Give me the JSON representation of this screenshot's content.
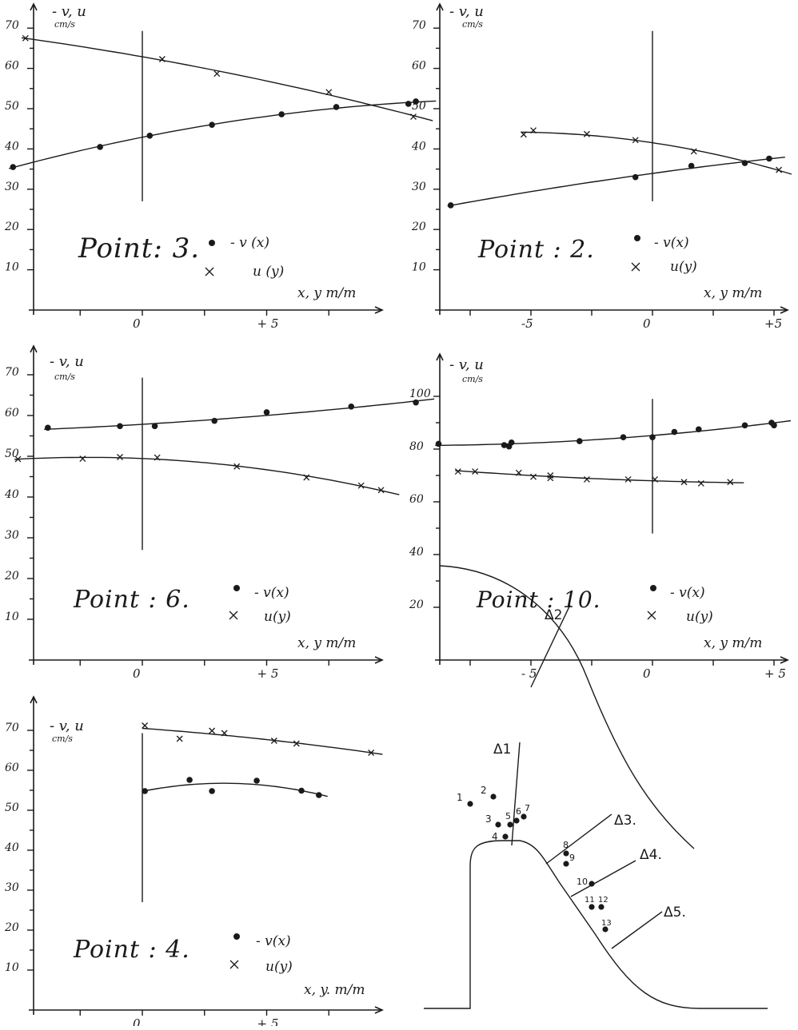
{
  "chart_data": [
    {
      "type": "scatter",
      "ylabel": "- v, u",
      "yunit": "cm/s",
      "xlabel": "x, y m/m",
      "yticks": [
        "70",
        "60",
        "50",
        "40",
        "30",
        "20",
        "10"
      ],
      "ytick_values": [
        70,
        60,
        50,
        40,
        30,
        20,
        10
      ],
      "xticks": [
        "0",
        "+ 5"
      ],
      "xtick_values": [
        0,
        5
      ],
      "xlim": [
        -5.4,
        12
      ],
      "ylim": [
        0,
        77
      ],
      "point_label": "Point: 3.",
      "legend": {
        "dot_label": "- v (x)",
        "cross_label": "u (y)"
      },
      "series": [
        {
          "name": "- v (x)",
          "marker": "dot",
          "x": [
            -5.2,
            -1.7,
            0.3,
            2.8,
            5.6,
            7.8,
            10.7,
            11.0
          ],
          "y": [
            35.5,
            40.5,
            43.3,
            46.0,
            48.6,
            50.4,
            51.2,
            51.8
          ]
        },
        {
          "name": "u (y)",
          "marker": "cross",
          "x": [
            -4.7,
            0.8,
            3.0,
            7.5,
            10.9
          ],
          "y": [
            67.5,
            62.3,
            58.7,
            54.1,
            48.0
          ]
        }
      ]
    },
    {
      "type": "scatter",
      "ylabel": "- v, u",
      "yunit": "cm/s",
      "xlabel": "x, y m/m",
      "yticks": [
        "70",
        "60",
        "50",
        "40",
        "30",
        "20",
        "10"
      ],
      "ytick_values": [
        70,
        60,
        50,
        40,
        30,
        20,
        10
      ],
      "xticks": [
        "-5",
        "0",
        "+5"
      ],
      "xtick_values": [
        -5,
        0,
        5
      ],
      "xlim": [
        -8.8,
        5.8
      ],
      "ylim": [
        0,
        77
      ],
      "point_label": "Point : 2.",
      "legend": {
        "dot_label": "- v(x)",
        "cross_label": "u(y)"
      },
      "series": [
        {
          "name": "- v(x)",
          "marker": "dot",
          "x": [
            -8.3,
            -0.7,
            1.6,
            3.8,
            4.8
          ],
          "y": [
            26.0,
            33.0,
            35.8,
            36.5,
            37.6
          ]
        },
        {
          "name": "u(y)",
          "marker": "cross",
          "x": [
            -5.3,
            -4.9,
            -2.7,
            -0.7,
            1.7,
            5.2
          ],
          "y": [
            43.6,
            44.6,
            43.7,
            42.2,
            39.4,
            34.8
          ]
        }
      ]
    },
    {
      "type": "scatter",
      "ylabel": "- v, u",
      "yunit": "cm/s",
      "xlabel": "x, y m/m",
      "yticks": [
        "70",
        "60",
        "50",
        "40",
        "30",
        "20",
        "10"
      ],
      "ytick_values": [
        70,
        60,
        50,
        40,
        30,
        20,
        10
      ],
      "xticks": [
        "0",
        "+ 5"
      ],
      "xtick_values": [
        0,
        5
      ],
      "xlim": [
        -5.4,
        12
      ],
      "ylim": [
        0,
        77
      ],
      "point_label": "Point : 6.",
      "legend": {
        "dot_label": "- v(x)",
        "cross_label": "u(y)"
      },
      "series": [
        {
          "name": "- v(x)",
          "marker": "dot",
          "x": [
            -3.8,
            -0.9,
            0.5,
            2.9,
            5.0,
            8.4,
            11.0
          ],
          "y": [
            57.0,
            57.4,
            57.4,
            58.7,
            60.8,
            62.2,
            63.2
          ]
        },
        {
          "name": "u(y)",
          "marker": "cross",
          "x": [
            -5.0,
            -2.4,
            -0.9,
            0.6,
            3.8,
            6.6,
            8.8,
            9.6
          ],
          "y": [
            49.3,
            49.4,
            49.8,
            49.7,
            47.5,
            44.8,
            42.8,
            41.7
          ]
        }
      ]
    },
    {
      "type": "scatter",
      "ylabel": "- v, u",
      "yunit": "cm/s",
      "xlabel": "x, y m/m",
      "yticks": [
        "100",
        "80",
        "60",
        "40",
        "20"
      ],
      "ytick_values": [
        100,
        80,
        60,
        40,
        20
      ],
      "xticks": [
        "- 5",
        "0",
        "+ 5"
      ],
      "xtick_values": [
        -5,
        0,
        5
      ],
      "xlim": [
        -8.9,
        6.0
      ],
      "ylim": [
        0,
        110
      ],
      "point_label": "Point : 10.",
      "legend": {
        "dot_label": "- v(x)",
        "cross_label": "u(y)"
      },
      "series": [
        {
          "name": "- v(x)",
          "marker": "dot",
          "x": [
            -8.8,
            -6.1,
            -5.9,
            -5.8,
            -3.0,
            -1.2,
            0.0,
            0.9,
            1.9,
            3.8,
            4.9,
            5.0
          ],
          "y": [
            82.0,
            81.5,
            81.0,
            82.5,
            83.0,
            84.5,
            84.5,
            86.5,
            87.5,
            89.0,
            90.0,
            89.0
          ]
        },
        {
          "name": "u(y)",
          "marker": "cross",
          "x": [
            -8.0,
            -7.3,
            -5.5,
            -4.9,
            -4.2,
            -4.2,
            -2.7,
            -1.0,
            0.1,
            1.3,
            2.0,
            3.2
          ],
          "y": [
            71.5,
            71.5,
            71.0,
            69.5,
            70.0,
            69.0,
            68.5,
            68.5,
            68.5,
            67.5,
            67.0,
            67.5
          ]
        }
      ]
    },
    {
      "type": "scatter",
      "ylabel": "- v, u",
      "yunit": "cm/s",
      "xlabel": "x, y. m/m",
      "yticks": [
        "70",
        "60",
        "50",
        "40",
        "30",
        "20",
        "10"
      ],
      "ytick_values": [
        70,
        60,
        50,
        40,
        30,
        20,
        10
      ],
      "xticks": [
        "0",
        "+ 5"
      ],
      "xtick_values": [
        0,
        5
      ],
      "xlim": [
        -5.4,
        12
      ],
      "ylim": [
        0,
        77
      ],
      "point_label": "Point : 4.",
      "legend": {
        "dot_label": "- v(x)",
        "cross_label": "u(y)"
      },
      "series": [
        {
          "name": "- v(x)",
          "marker": "dot",
          "x": [
            0.1,
            1.9,
            2.8,
            4.6,
            6.4,
            7.1
          ],
          "y": [
            54.8,
            57.6,
            54.8,
            57.4,
            54.9,
            53.8
          ]
        },
        {
          "name": "u(y)",
          "marker": "cross",
          "x": [
            0.1,
            1.5,
            2.8,
            3.3,
            5.3,
            6.2,
            9.2
          ],
          "y": [
            71.2,
            67.9,
            69.9,
            69.3,
            67.4,
            66.7,
            64.4
          ]
        }
      ]
    }
  ],
  "diagram": {
    "section_labels": [
      "Δ1",
      "Δ2",
      "Δ3.",
      "Δ4.",
      "Δ5."
    ],
    "point_labels": [
      "1",
      "2",
      "3",
      "4",
      "5",
      "6",
      "7",
      "8",
      "9",
      "10",
      "11",
      "12",
      "13"
    ]
  }
}
